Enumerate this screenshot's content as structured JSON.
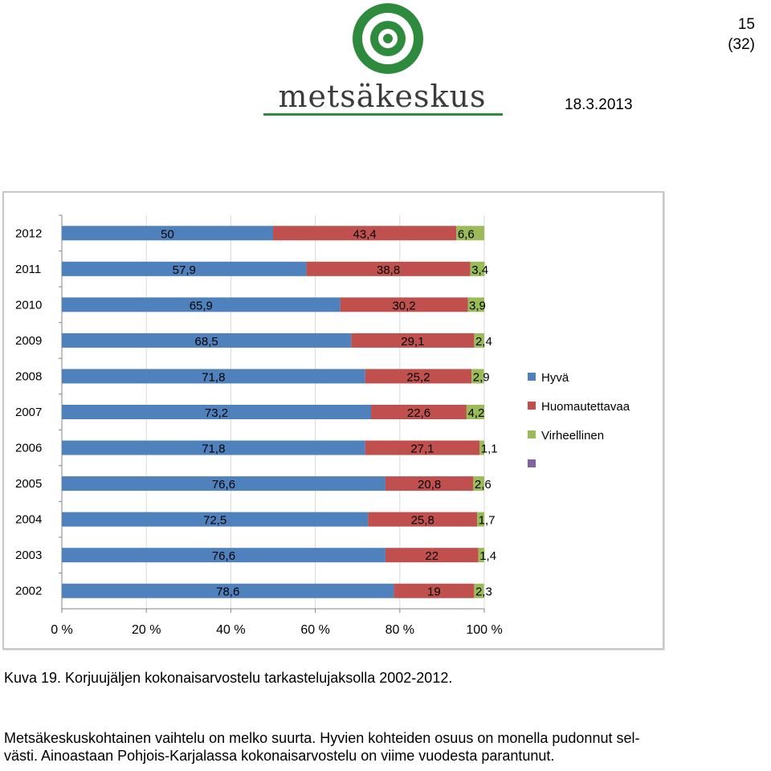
{
  "header": {
    "page_number": "15",
    "page_total": "(32)",
    "logo_text": "metsäkeskus",
    "date": "18.3.2013"
  },
  "colors": {
    "series": [
      "#4f81bd",
      "#c0504d",
      "#9bbb59",
      "#8064a2"
    ],
    "logo_green": "#2e8b3d"
  },
  "chart_data": {
    "type": "bar",
    "orientation": "horizontal",
    "stacked": "percent",
    "categories": [
      "2012",
      "2011",
      "2010",
      "2009",
      "2008",
      "2007",
      "2006",
      "2005",
      "2004",
      "2003",
      "2002"
    ],
    "series": [
      {
        "name": "Hyvä",
        "values": [
          50,
          57.9,
          65.9,
          68.5,
          71.8,
          73.2,
          71.8,
          76.6,
          72.5,
          76.6,
          78.6
        ],
        "labels": [
          "50",
          "57,9",
          "65,9",
          "68,5",
          "71,8",
          "73,2",
          "71,8",
          "76,6",
          "72,5",
          "76,6",
          "78,6"
        ]
      },
      {
        "name": "Huomautettavaa",
        "values": [
          43.4,
          38.8,
          30.2,
          29.1,
          25.2,
          22.6,
          27.1,
          20.8,
          25.8,
          22,
          19
        ],
        "labels": [
          "43,4",
          "38,8",
          "30,2",
          "29,1",
          "25,2",
          "22,6",
          "27,1",
          "20,8",
          "25,8",
          "22",
          "19"
        ]
      },
      {
        "name": "Virheellinen",
        "values": [
          6.6,
          3.4,
          3.9,
          2.4,
          2.9,
          4.2,
          1.1,
          2.6,
          1.7,
          1.4,
          2.3
        ],
        "labels": [
          "6,6",
          "3,4",
          "3,9",
          "2,4",
          "2,9",
          "4,2",
          "1,1",
          "2,6",
          "1,7",
          "1,4",
          "2,3"
        ]
      },
      {
        "name": "",
        "values": [
          0,
          0,
          0,
          0,
          0,
          0,
          0,
          0,
          0,
          0,
          0
        ],
        "labels": []
      }
    ],
    "xticks": [
      "0 %",
      "20 %",
      "40 %",
      "60 %",
      "80 %",
      "100 %"
    ],
    "xlim": [
      0,
      100
    ],
    "grid": "vertical",
    "legend": "right"
  },
  "caption": "Kuva 19. Korjuujäljen kokonaisarvostelu tarkastelujaksolla 2002-2012.",
  "paragraph_line1": "Metsäkeskuskohtainen vaihtelu on melko suurta. Hyvien kohteiden osuus on monella pudonnut sel-",
  "paragraph_line2": "västi. Ainoastaan Pohjois-Karjalassa kokonaisarvostelu on viime vuodesta parantunut."
}
